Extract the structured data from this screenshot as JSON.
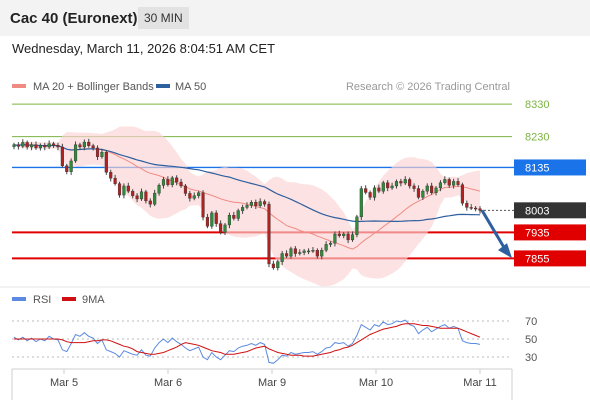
{
  "header": {
    "title": "Cac 40 (Euronext)",
    "timeframe": "30 MIN",
    "datetime": "Wednesday, March 11, 2026 8:04:51 AM CET"
  },
  "legend": {
    "ma20_label": "MA 20 + Bollinger Bands",
    "ma50_label": "MA 50",
    "ma20_color": "#f08b84",
    "ma50_color": "#2e5f9e",
    "credit": "Research © 2026 Trading Central"
  },
  "rsi_legend": {
    "rsi_label": "RSI",
    "ma9_label": "9MA",
    "rsi_color": "#5b8ae0",
    "ma9_color": "#d01010"
  },
  "chart_data": {
    "type": "line",
    "price_range": [
      7770,
      8355
    ],
    "x_labels": [
      "Mar 5",
      "Mar 6",
      "Mar 9",
      "Mar 10",
      "Mar 11"
    ],
    "levels": [
      {
        "value": 8330,
        "label": "8330",
        "kind": "target",
        "color": "#7cb342"
      },
      {
        "value": 8230,
        "label": "8230",
        "kind": "target",
        "color": "#7cb342"
      },
      {
        "value": 8135,
        "label": "8135",
        "kind": "resistance",
        "color": "#1a73e8"
      },
      {
        "value": 8003,
        "label": "8003",
        "kind": "last",
        "color": "#333333"
      },
      {
        "value": 7935,
        "label": "7935",
        "kind": "support",
        "color": "#e00000"
      },
      {
        "value": 7855,
        "label": "7855",
        "kind": "support",
        "color": "#e00000"
      }
    ],
    "closes": [
      8205,
      8200,
      8212,
      8198,
      8205,
      8195,
      8203,
      8198,
      8208,
      8203,
      8198,
      8140,
      8122,
      8155,
      8205,
      8198,
      8213,
      8202,
      8195,
      8168,
      8182,
      8120,
      8102,
      8085,
      8050,
      8078,
      8062,
      8048,
      8038,
      8060,
      8032,
      8022,
      8056,
      8080,
      8098,
      8082,
      8103,
      8090,
      8078,
      8055,
      8040,
      8048,
      8057,
      7982,
      7954,
      7995,
      7962,
      7935,
      7958,
      7988,
      7978,
      8002,
      8012,
      8018,
      8028,
      8017,
      8030,
      8022,
      7838,
      7826,
      7845,
      7870,
      7862,
      7885,
      7870,
      7873,
      7878,
      7878,
      7880,
      7862,
      7880,
      7898,
      7902,
      7930,
      7925,
      7930,
      7912,
      7928,
      7983,
      8070,
      8058,
      8043,
      8072,
      8062,
      8088,
      8072,
      8078,
      8092,
      8087,
      8098,
      8078,
      8070,
      8043,
      8062,
      8078,
      8057,
      8072,
      8088,
      8098,
      8080,
      8092,
      8082,
      8025,
      8012,
      8010,
      8008,
      8003
    ],
    "rsi_scale": [
      20,
      80
    ],
    "rsi_ticks": [
      70,
      50,
      30
    ],
    "rsi": [
      52,
      49,
      52,
      48,
      51,
      47,
      50,
      48,
      53,
      50,
      49,
      38,
      36,
      45,
      55,
      53,
      57,
      53,
      51,
      45,
      49,
      38,
      36,
      34,
      30,
      37,
      35,
      33,
      32,
      38,
      32,
      31,
      40,
      46,
      50,
      46,
      51,
      47,
      44,
      40,
      37,
      39,
      41,
      30,
      27,
      35,
      30,
      27,
      32,
      37,
      36,
      40,
      42,
      43,
      45,
      43,
      46,
      44,
      24,
      23,
      27,
      32,
      31,
      35,
      33,
      34,
      35,
      35,
      36,
      33,
      36,
      40,
      41,
      46,
      45,
      46,
      42,
      45,
      54,
      66,
      63,
      60,
      66,
      64,
      69,
      66,
      67,
      70,
      69,
      71,
      66,
      64,
      56,
      60,
      63,
      58,
      61,
      64,
      66,
      62,
      64,
      62,
      48,
      46,
      45,
      45,
      44
    ],
    "rsi_ma9": [
      50,
      50,
      50,
      50,
      50,
      50,
      50,
      50,
      50,
      50,
      50,
      49,
      47,
      46,
      46,
      46,
      46,
      47,
      48,
      48,
      49,
      49,
      48,
      46,
      44,
      42,
      41,
      39,
      36,
      35,
      34,
      33,
      33,
      34,
      35,
      37,
      39,
      41,
      44,
      46,
      45,
      44,
      43,
      41,
      39,
      37,
      36,
      35,
      33,
      33,
      33,
      34,
      35,
      36,
      38,
      40,
      41,
      42,
      39,
      37,
      35,
      34,
      33,
      32,
      32,
      32,
      31,
      31,
      31,
      32,
      33,
      34,
      35,
      37,
      38,
      40,
      41,
      43,
      46,
      49,
      52,
      55,
      57,
      59,
      61,
      62,
      63,
      64,
      66,
      67,
      67,
      67,
      66,
      65,
      65,
      64,
      63,
      62,
      62,
      62,
      62,
      62,
      60,
      58,
      56,
      54,
      52
    ]
  }
}
